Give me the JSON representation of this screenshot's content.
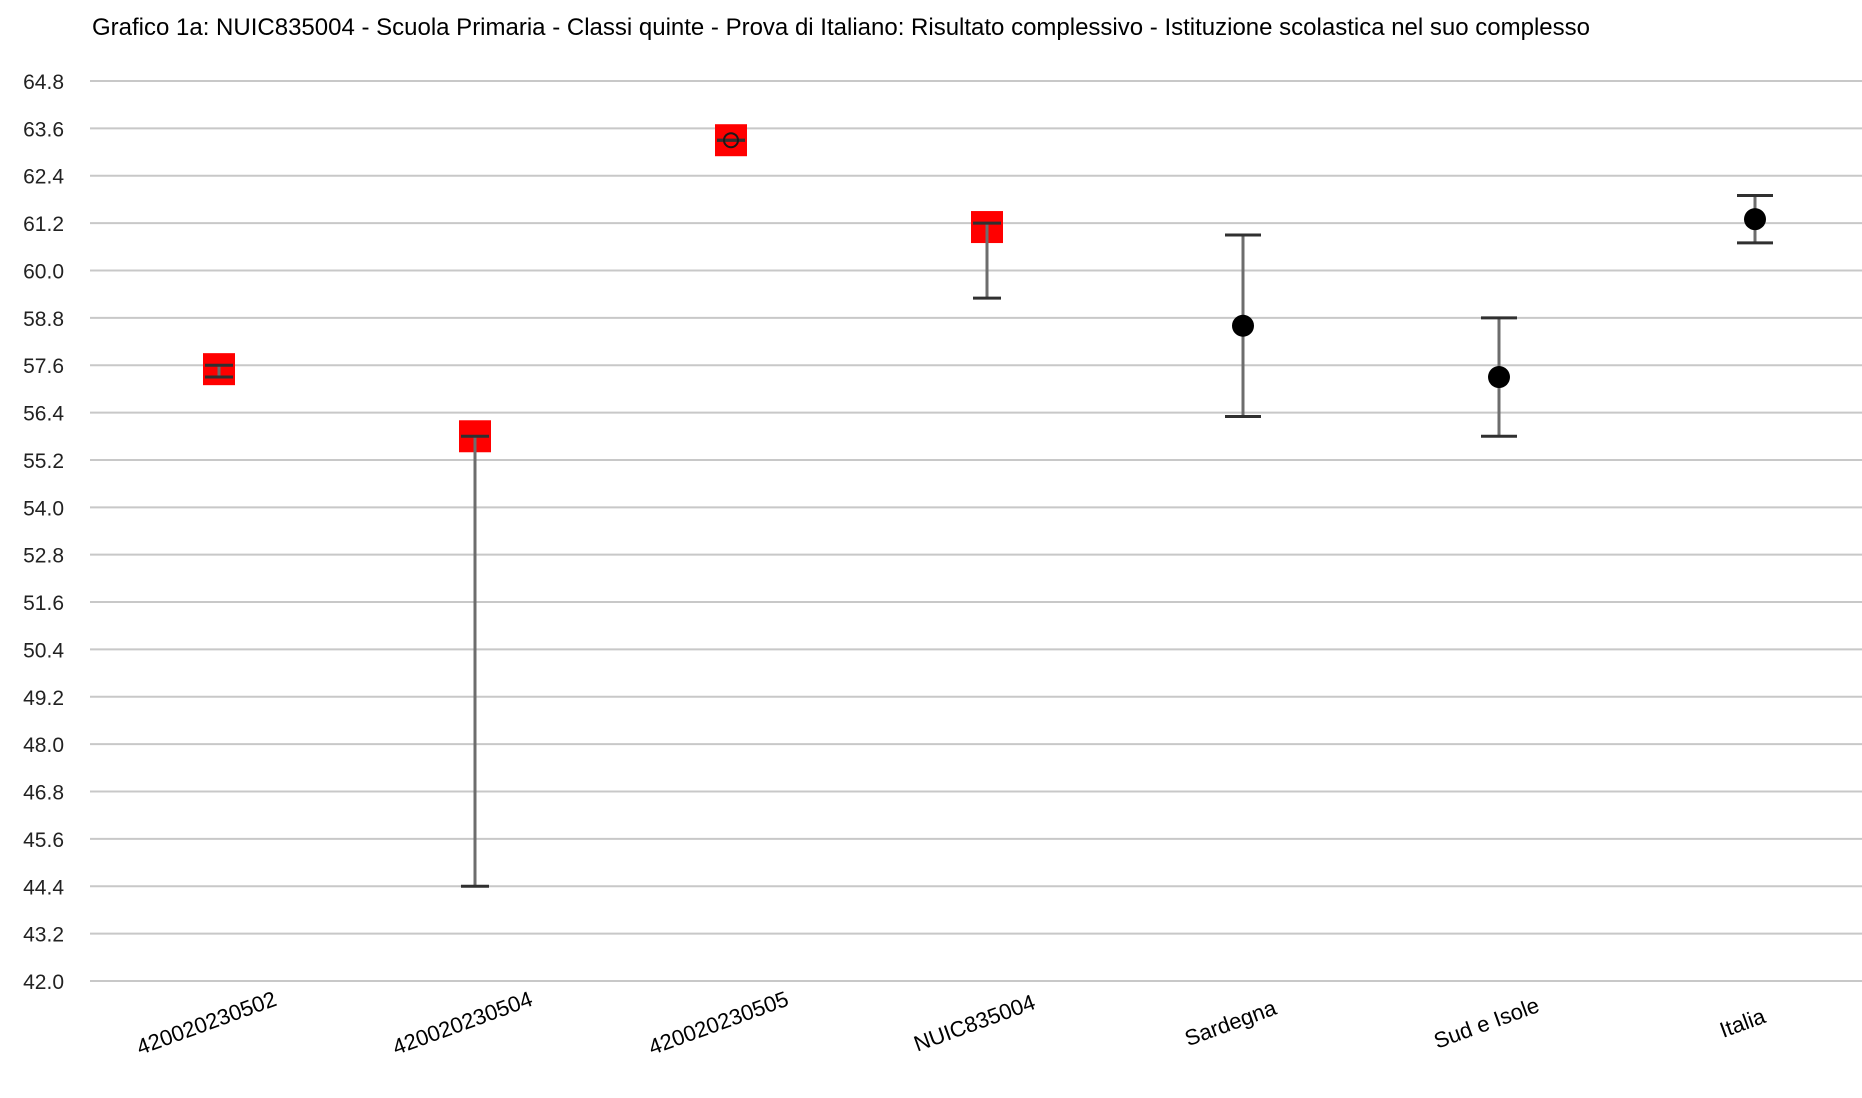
{
  "chart_data": {
    "type": "scatter",
    "title": "Grafico 1a: NUIC835004 - Scuola Primaria - Classi quinte - Prova di Italiano: Risultato complessivo - Istituzione scolastica nel suo complesso",
    "xlabel": "",
    "ylabel": "",
    "ylim": [
      42.0,
      64.8
    ],
    "yticks": [
      "42.0",
      "43.2",
      "44.4",
      "45.6",
      "46.8",
      "48.0",
      "49.2",
      "50.4",
      "51.6",
      "52.8",
      "54.0",
      "55.2",
      "56.4",
      "57.6",
      "58.8",
      "60.0",
      "61.2",
      "62.4",
      "63.6",
      "64.8"
    ],
    "categories": [
      "420020230502",
      "420020230504",
      "420020230505",
      "NUIC835004",
      "Sardegna",
      "Sud e Isole",
      "Italia"
    ],
    "grid": true,
    "legend": "none",
    "points": [
      {
        "category": "420020230502",
        "value": 57.5,
        "low": 57.3,
        "high": 57.6,
        "marker": "square",
        "color": "#ff0000"
      },
      {
        "category": "420020230504",
        "value": 55.8,
        "low": 44.4,
        "high": 55.8,
        "marker": "square",
        "color": "#ff0000"
      },
      {
        "category": "420020230505",
        "value": 63.3,
        "low": 63.3,
        "high": 63.3,
        "marker": "square",
        "color": "#ff0000"
      },
      {
        "category": "NUIC835004",
        "value": 61.1,
        "low": 59.3,
        "high": 61.2,
        "marker": "square",
        "color": "#ff0000"
      },
      {
        "category": "Sardegna",
        "value": 58.6,
        "low": 56.3,
        "high": 60.9,
        "marker": "circle",
        "color": "#000000"
      },
      {
        "category": "Sud e Isole",
        "value": 57.3,
        "low": 55.8,
        "high": 58.8,
        "marker": "circle",
        "color": "#000000"
      },
      {
        "category": "Italia",
        "value": 61.3,
        "low": 60.7,
        "high": 61.9,
        "marker": "circle",
        "color": "#000000"
      }
    ]
  }
}
